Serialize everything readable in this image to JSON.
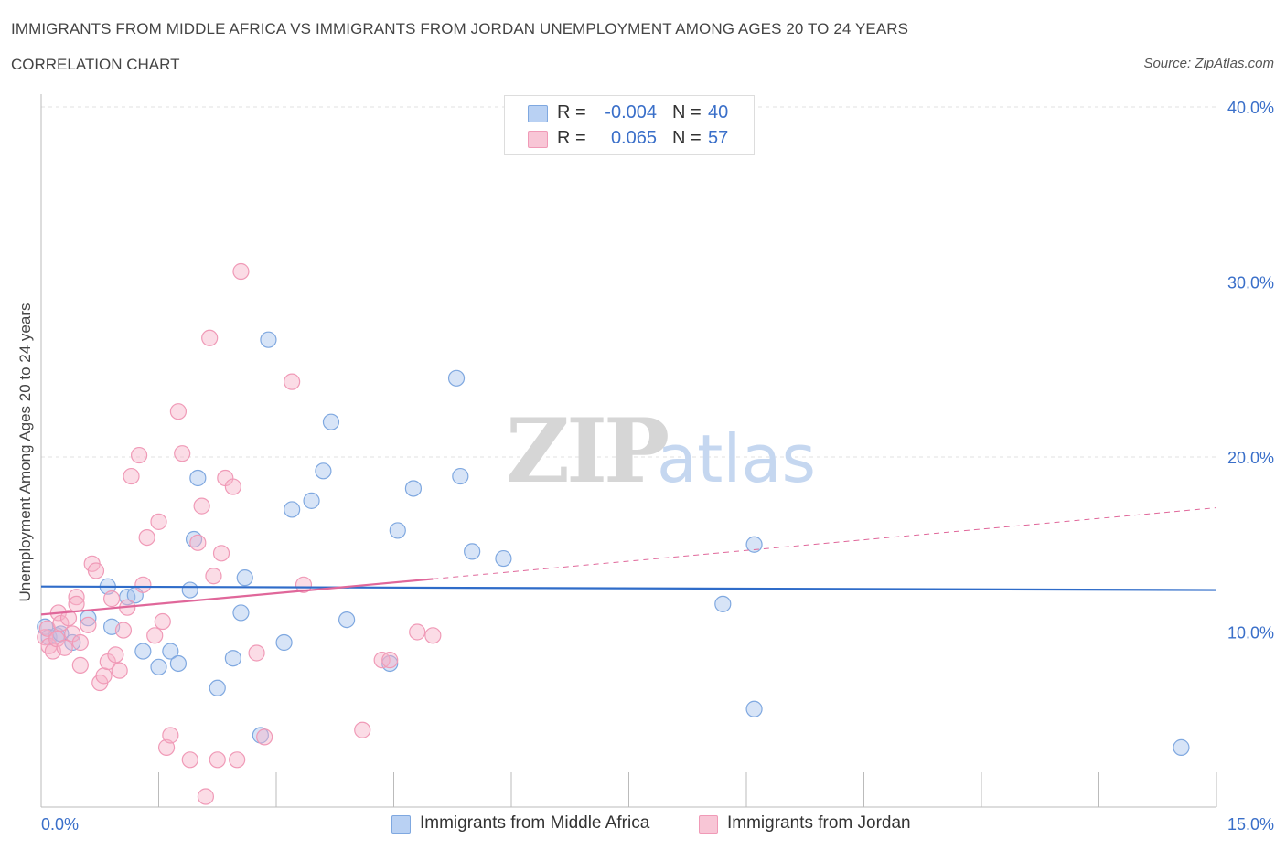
{
  "header": {
    "title": "IMMIGRANTS FROM MIDDLE AFRICA VS IMMIGRANTS FROM JORDAN UNEMPLOYMENT AMONG AGES 20 TO 24 YEARS",
    "subtitle": "CORRELATION CHART",
    "source": "Source: ZipAtlas.com"
  },
  "watermark": {
    "zip": "ZIP",
    "atlas": "atlas"
  },
  "legend": {
    "series1": {
      "r_label": "R =",
      "r_value": "-0.004",
      "n_label": "N =",
      "n_value": "40"
    },
    "series2": {
      "r_label": "R =",
      "r_value": "0.065",
      "n_label": "N =",
      "n_value": "57"
    }
  },
  "chart_data": {
    "type": "scatter",
    "xlabel": "",
    "ylabel": "Unemployment Among Ages 20 to 24 years",
    "xlim": [
      0,
      15
    ],
    "ylim": [
      0,
      40
    ],
    "x_tick_labels": [
      "0.0%",
      "15.0%"
    ],
    "y_tick_labels": [
      "10.0%",
      "20.0%",
      "30.0%",
      "40.0%"
    ],
    "y_tick_values": [
      10,
      20,
      30,
      40
    ],
    "grid": true,
    "legend_position": "top-center",
    "colors": {
      "series1": "#7fa8e0",
      "series2": "#f09ab7",
      "trend1": "#2f6cc9",
      "trend2": "#e0679a",
      "tick_text": "#3a6fc9"
    },
    "series": [
      {
        "name": "Immigrants from Middle Africa",
        "r": -0.004,
        "n": 40,
        "trend": {
          "x": [
            0,
            15
          ],
          "y": [
            12.6,
            12.4
          ],
          "style": "solid"
        },
        "points": [
          [
            0.05,
            10.3
          ],
          [
            0.1,
            9.7
          ],
          [
            0.2,
            9.8
          ],
          [
            0.25,
            9.9
          ],
          [
            0.4,
            9.4
          ],
          [
            0.6,
            10.8
          ],
          [
            0.85,
            12.6
          ],
          [
            0.9,
            10.3
          ],
          [
            1.1,
            12.0
          ],
          [
            1.2,
            12.1
          ],
          [
            1.3,
            8.9
          ],
          [
            1.5,
            8.0
          ],
          [
            1.65,
            8.9
          ],
          [
            1.75,
            8.2
          ],
          [
            2.0,
            18.8
          ],
          [
            1.9,
            12.4
          ],
          [
            1.95,
            15.3
          ],
          [
            2.25,
            6.8
          ],
          [
            2.45,
            8.5
          ],
          [
            2.55,
            11.1
          ],
          [
            2.6,
            13.1
          ],
          [
            2.8,
            4.1
          ],
          [
            2.9,
            26.7
          ],
          [
            3.1,
            9.4
          ],
          [
            3.2,
            17.0
          ],
          [
            3.45,
            17.5
          ],
          [
            3.6,
            19.2
          ],
          [
            3.7,
            22.0
          ],
          [
            3.9,
            10.7
          ],
          [
            4.45,
            8.2
          ],
          [
            4.55,
            15.8
          ],
          [
            4.75,
            18.2
          ],
          [
            5.3,
            24.5
          ],
          [
            5.35,
            18.9
          ],
          [
            5.5,
            14.6
          ],
          [
            5.9,
            14.2
          ],
          [
            8.7,
            11.6
          ],
          [
            9.1,
            15.0
          ],
          [
            9.1,
            5.6
          ],
          [
            14.55,
            3.4
          ]
        ]
      },
      {
        "name": "Immigrants from Jordan",
        "r": 0.065,
        "n": 57,
        "trend": {
          "x": [
            0,
            15
          ],
          "y": [
            11.0,
            17.1
          ],
          "solid_until": 5.0,
          "style": "solid-then-dashed"
        },
        "points": [
          [
            0.05,
            9.7
          ],
          [
            0.08,
            10.2
          ],
          [
            0.1,
            9.2
          ],
          [
            0.15,
            8.9
          ],
          [
            0.2,
            9.6
          ],
          [
            0.22,
            11.1
          ],
          [
            0.25,
            10.5
          ],
          [
            0.3,
            9.1
          ],
          [
            0.35,
            10.8
          ],
          [
            0.4,
            9.9
          ],
          [
            0.45,
            12.0
          ],
          [
            0.45,
            11.6
          ],
          [
            0.5,
            8.1
          ],
          [
            0.5,
            9.4
          ],
          [
            0.6,
            10.4
          ],
          [
            0.65,
            13.9
          ],
          [
            0.7,
            13.5
          ],
          [
            0.75,
            7.1
          ],
          [
            0.8,
            7.5
          ],
          [
            0.85,
            8.3
          ],
          [
            0.9,
            11.9
          ],
          [
            0.95,
            8.7
          ],
          [
            1.0,
            7.8
          ],
          [
            1.05,
            10.1
          ],
          [
            1.1,
            11.4
          ],
          [
            1.15,
            18.9
          ],
          [
            1.25,
            20.1
          ],
          [
            1.3,
            12.7
          ],
          [
            1.35,
            15.4
          ],
          [
            1.45,
            9.8
          ],
          [
            1.5,
            16.3
          ],
          [
            1.55,
            10.6
          ],
          [
            1.6,
            3.4
          ],
          [
            1.65,
            4.1
          ],
          [
            1.75,
            22.6
          ],
          [
            1.8,
            20.2
          ],
          [
            1.9,
            2.7
          ],
          [
            2.0,
            15.1
          ],
          [
            2.05,
            17.2
          ],
          [
            2.1,
            0.6
          ],
          [
            2.15,
            26.8
          ],
          [
            2.2,
            13.2
          ],
          [
            2.25,
            2.7
          ],
          [
            2.3,
            14.5
          ],
          [
            2.35,
            18.8
          ],
          [
            2.45,
            18.3
          ],
          [
            2.5,
            2.7
          ],
          [
            2.55,
            30.6
          ],
          [
            2.75,
            8.8
          ],
          [
            2.85,
            4.0
          ],
          [
            3.2,
            24.3
          ],
          [
            3.35,
            12.7
          ],
          [
            4.1,
            4.4
          ],
          [
            4.35,
            8.4
          ],
          [
            4.45,
            8.4
          ],
          [
            4.8,
            10.0
          ],
          [
            5.0,
            9.8
          ]
        ]
      }
    ]
  }
}
